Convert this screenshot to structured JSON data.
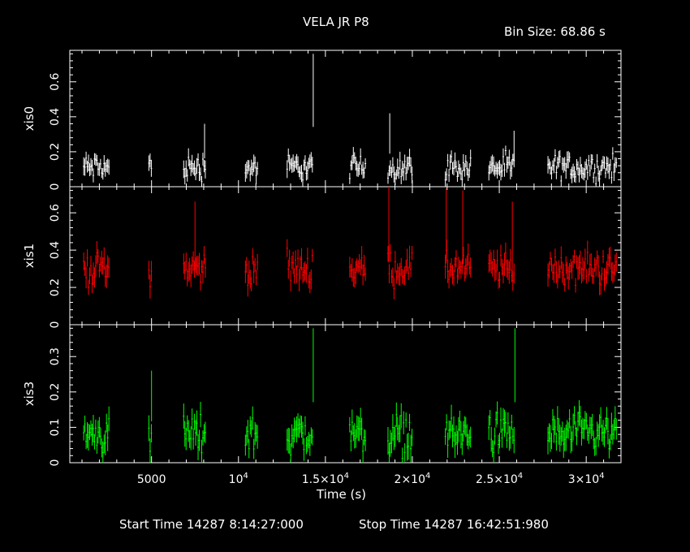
{
  "title": "VELA JR P8",
  "bin_size": "Bin Size: 68.86 s",
  "footer": {
    "start": "Start Time 14287  8:14:27:000",
    "stop": "Stop Time 14287 16:42:51:980"
  },
  "chart_data": {
    "type": "line",
    "xlabel": "Time (s)",
    "xlim": [
      300,
      32000
    ],
    "x_ticks": [
      {
        "value": 5000,
        "label": "5000"
      },
      {
        "value": 10000,
        "label": "10^4"
      },
      {
        "value": 15000,
        "label": "1.5×10^4"
      },
      {
        "value": 20000,
        "label": "2×10^4"
      },
      {
        "value": 25000,
        "label": "2.5×10^4"
      },
      {
        "value": 30000,
        "label": "3×10^4"
      }
    ],
    "segments": [
      [
        1100,
        2600
      ],
      [
        4850,
        5050
      ],
      [
        6850,
        8100
      ],
      [
        10400,
        11100
      ],
      [
        12800,
        14300
      ],
      [
        16400,
        17300
      ],
      [
        18600,
        20000
      ],
      [
        21900,
        23400
      ],
      [
        24400,
        25850
      ],
      [
        27800,
        31800
      ]
    ],
    "panels": [
      {
        "name": "xis0",
        "color": "#ffffff",
        "ylim": [
          0,
          0.78
        ],
        "yticks": [
          0,
          0.2,
          0.4,
          0.6
        ],
        "base": 0.11,
        "noise": 0.05,
        "err": 0.04,
        "spikes": [
          {
            "x": 8050,
            "y": 0.36
          },
          {
            "x": 14300,
            "y": 0.76
          },
          {
            "x": 18700,
            "y": 0.42
          },
          {
            "x": 25850,
            "y": 0.32
          }
        ]
      },
      {
        "name": "xis1",
        "color": "#ff0000",
        "ylim": [
          0,
          0.74
        ],
        "yticks": [
          0,
          0.2,
          0.4,
          0.6
        ],
        "base": 0.3,
        "noise": 0.06,
        "err": 0.05,
        "spikes": [
          {
            "x": 7500,
            "y": 0.66
          },
          {
            "x": 18650,
            "y": 0.74
          },
          {
            "x": 21950,
            "y": 0.73
          },
          {
            "x": 22900,
            "y": 0.72
          },
          {
            "x": 25750,
            "y": 0.66
          }
        ]
      },
      {
        "name": "xis3",
        "color": "#00ff00",
        "ylim": [
          0,
          0.39
        ],
        "yticks": [
          0,
          0.1,
          0.2,
          0.3
        ],
        "base": 0.08,
        "noise": 0.04,
        "err": 0.03,
        "spikes": [
          {
            "x": 5000,
            "y": 0.26
          },
          {
            "x": 14300,
            "y": 0.38
          },
          {
            "x": 25900,
            "y": 0.38
          }
        ]
      }
    ]
  }
}
